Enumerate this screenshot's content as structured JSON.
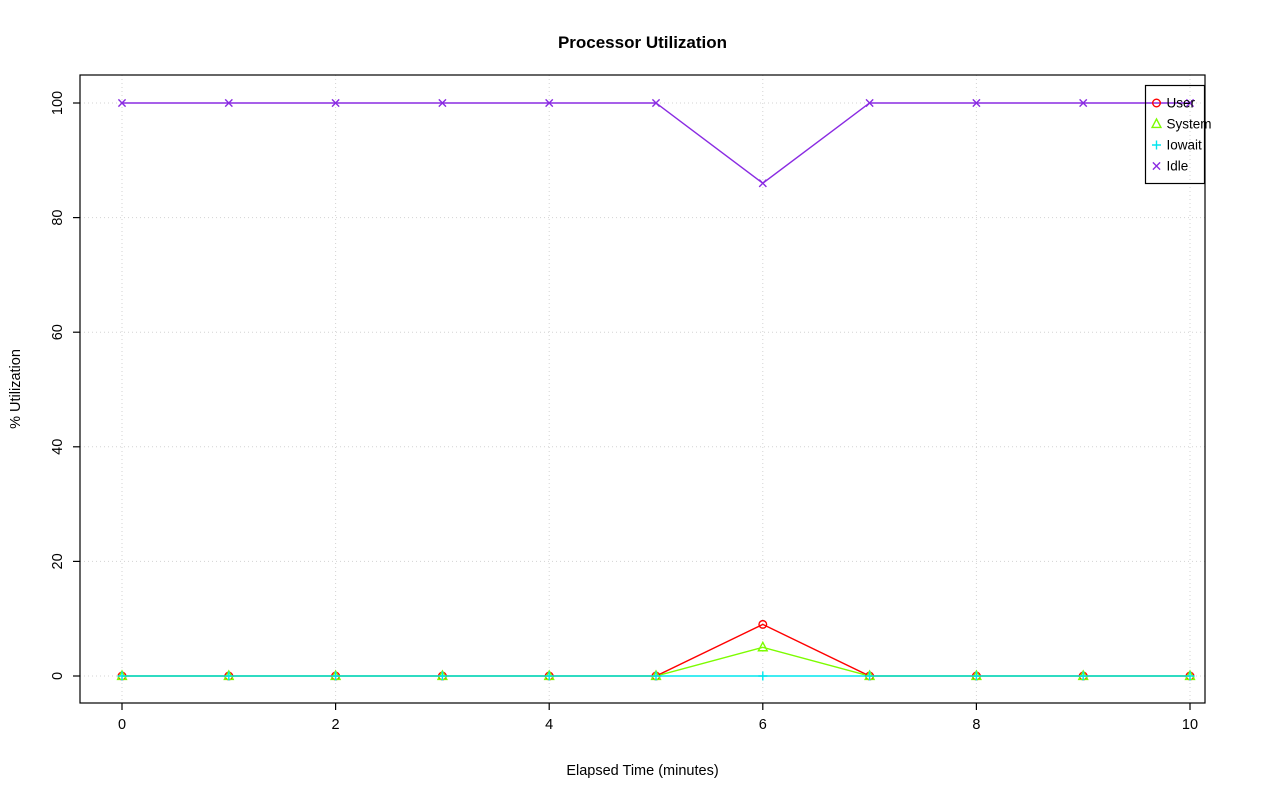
{
  "chart_data": {
    "type": "line",
    "title": "Processor Utilization",
    "xlabel": "Elapsed Time (minutes)",
    "ylabel": "% Utilization",
    "x": [
      0,
      1,
      2,
      3,
      4,
      5,
      6,
      7,
      8,
      9,
      10
    ],
    "xticks": [
      0,
      2,
      4,
      6,
      8,
      10
    ],
    "yticks": [
      0,
      20,
      40,
      60,
      80,
      100
    ],
    "xlim": [
      0,
      10
    ],
    "ylim": [
      0,
      100
    ],
    "grid": "dotted",
    "grid_color": "#d3d3d3",
    "legend_position": "top-right",
    "series": [
      {
        "name": "User",
        "color": "#ff0000",
        "marker": "circle",
        "values": [
          0,
          0,
          0,
          0,
          0,
          0,
          9,
          0,
          0,
          0,
          0
        ]
      },
      {
        "name": "System",
        "color": "#7cfc00",
        "marker": "triangle",
        "values": [
          0,
          0,
          0,
          0,
          0,
          0,
          5,
          0,
          0,
          0,
          0
        ]
      },
      {
        "name": "Iowait",
        "color": "#00e5ee",
        "marker": "plus",
        "values": [
          0,
          0,
          0,
          0,
          0,
          0,
          0,
          0,
          0,
          0,
          0
        ]
      },
      {
        "name": "Idle",
        "color": "#8a2be2",
        "marker": "x",
        "values": [
          100,
          100,
          100,
          100,
          100,
          100,
          86,
          100,
          100,
          100,
          100
        ]
      }
    ]
  }
}
